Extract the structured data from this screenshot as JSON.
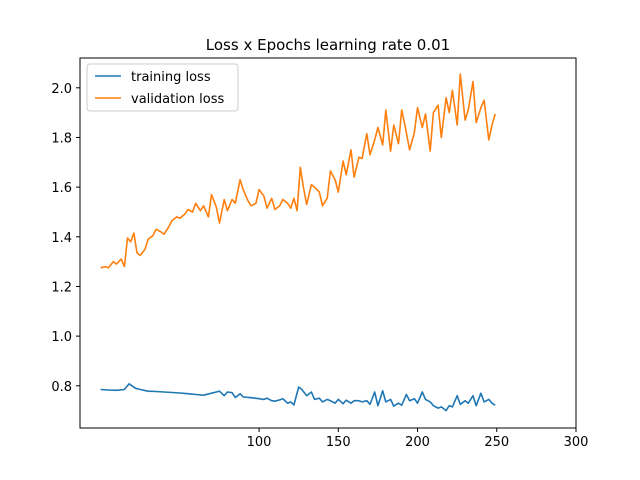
{
  "chart_data": {
    "type": "line",
    "title": "Loss x Epochs learning rate 0.01",
    "xlabel": "",
    "ylabel": "",
    "xlim": [
      -13,
      300
    ],
    "ylim": [
      0.63,
      2.12
    ],
    "xticks": [
      100,
      150,
      200,
      250,
      300
    ],
    "yticks": [
      0.8,
      1.0,
      1.2,
      1.4,
      1.6,
      1.8,
      2.0
    ],
    "grid": false,
    "legend": "top-left",
    "series": [
      {
        "name": "training loss",
        "color": "#1f77b4",
        "x": [
          0,
          5,
          10,
          15,
          18,
          22,
          25,
          30,
          35,
          40,
          45,
          50,
          55,
          60,
          65,
          70,
          73,
          75,
          78,
          80,
          83,
          85,
          88,
          90,
          95,
          100,
          103,
          105,
          108,
          110,
          113,
          115,
          118,
          120,
          122,
          125,
          127,
          130,
          133,
          135,
          138,
          140,
          143,
          145,
          148,
          150,
          153,
          155,
          158,
          160,
          163,
          165,
          168,
          170,
          173,
          175,
          178,
          180,
          183,
          185,
          188,
          190,
          193,
          195,
          198,
          200,
          203,
          205,
          208,
          210,
          213,
          215,
          218,
          220,
          222,
          225,
          227,
          230,
          232,
          235,
          237,
          240,
          242,
          245,
          247,
          249
        ],
        "y": [
          0.785,
          0.783,
          0.782,
          0.785,
          0.808,
          0.79,
          0.785,
          0.778,
          0.777,
          0.775,
          0.773,
          0.771,
          0.768,
          0.765,
          0.762,
          0.77,
          0.775,
          0.778,
          0.76,
          0.775,
          0.772,
          0.753,
          0.768,
          0.755,
          0.752,
          0.748,
          0.745,
          0.75,
          0.74,
          0.738,
          0.743,
          0.748,
          0.73,
          0.735,
          0.723,
          0.795,
          0.785,
          0.76,
          0.775,
          0.745,
          0.75,
          0.735,
          0.745,
          0.74,
          0.73,
          0.745,
          0.728,
          0.742,
          0.73,
          0.74,
          0.74,
          0.735,
          0.74,
          0.725,
          0.775,
          0.72,
          0.78,
          0.735,
          0.745,
          0.718,
          0.73,
          0.722,
          0.765,
          0.74,
          0.748,
          0.73,
          0.775,
          0.745,
          0.735,
          0.72,
          0.71,
          0.715,
          0.7,
          0.72,
          0.715,
          0.76,
          0.725,
          0.74,
          0.73,
          0.76,
          0.72,
          0.77,
          0.735,
          0.745,
          0.73,
          0.722
        ]
      },
      {
        "name": "validation loss",
        "color": "#ff7f0e",
        "x": [
          0,
          3,
          5,
          8,
          10,
          13,
          15,
          17,
          19,
          21,
          23,
          25,
          28,
          30,
          33,
          35,
          38,
          40,
          43,
          45,
          48,
          50,
          53,
          55,
          58,
          60,
          63,
          65,
          68,
          70,
          73,
          75,
          78,
          80,
          83,
          85,
          88,
          90,
          93,
          95,
          98,
          100,
          103,
          105,
          108,
          110,
          113,
          115,
          118,
          120,
          122,
          124,
          126,
          128,
          130,
          133,
          135,
          138,
          140,
          143,
          145,
          148,
          150,
          153,
          155,
          158,
          160,
          163,
          165,
          168,
          170,
          173,
          175,
          178,
          180,
          183,
          185,
          188,
          190,
          192,
          195,
          198,
          200,
          203,
          205,
          208,
          210,
          213,
          215,
          218,
          220,
          222,
          225,
          227,
          230,
          232,
          235,
          237,
          240,
          242,
          245,
          247,
          249
        ],
        "y": [
          1.275,
          1.28,
          1.275,
          1.3,
          1.29,
          1.31,
          1.28,
          1.395,
          1.38,
          1.415,
          1.335,
          1.325,
          1.35,
          1.39,
          1.405,
          1.43,
          1.42,
          1.41,
          1.44,
          1.465,
          1.48,
          1.475,
          1.49,
          1.51,
          1.5,
          1.535,
          1.505,
          1.525,
          1.48,
          1.57,
          1.52,
          1.455,
          1.55,
          1.505,
          1.55,
          1.535,
          1.63,
          1.59,
          1.545,
          1.525,
          1.535,
          1.59,
          1.565,
          1.515,
          1.555,
          1.51,
          1.525,
          1.55,
          1.535,
          1.515,
          1.555,
          1.505,
          1.68,
          1.6,
          1.53,
          1.61,
          1.6,
          1.58,
          1.525,
          1.555,
          1.665,
          1.63,
          1.58,
          1.705,
          1.65,
          1.75,
          1.64,
          1.72,
          1.715,
          1.815,
          1.73,
          1.79,
          1.84,
          1.77,
          1.91,
          1.745,
          1.85,
          1.775,
          1.91,
          1.85,
          1.75,
          1.82,
          1.92,
          1.84,
          1.895,
          1.745,
          1.9,
          1.93,
          1.8,
          1.96,
          1.9,
          1.99,
          1.85,
          2.055,
          1.87,
          1.91,
          2.025,
          1.86,
          1.92,
          1.95,
          1.79,
          1.85,
          1.895
        ]
      }
    ]
  }
}
